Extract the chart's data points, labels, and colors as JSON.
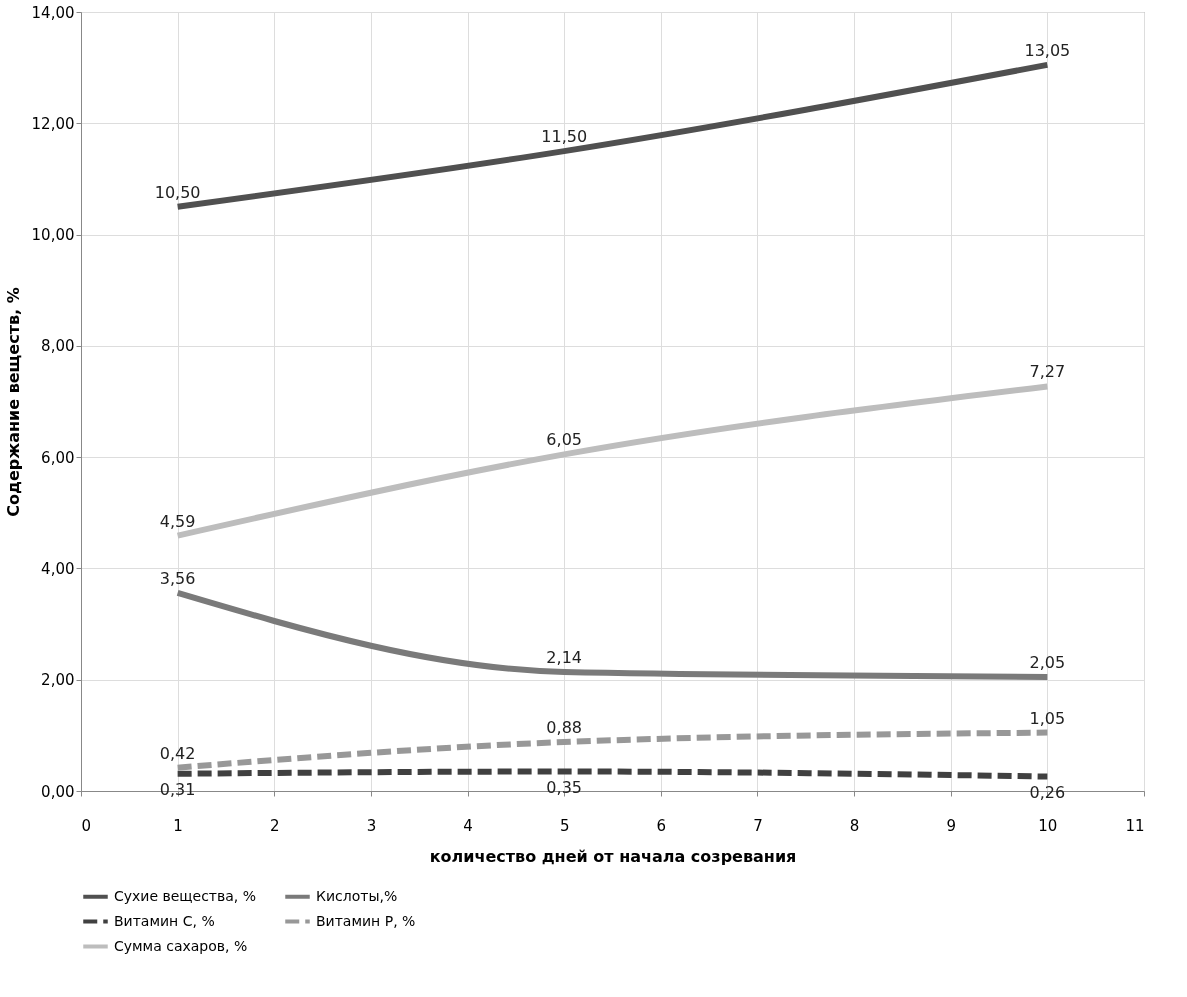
{
  "chart_data": {
    "type": "line",
    "xlabel": "количество дней от начала созревания",
    "ylabel": "Содержание веществ, %",
    "x": [
      1,
      5,
      10
    ],
    "series": [
      {
        "name": "Сухие вещества, %",
        "color": "#505050",
        "line_style": "solid",
        "values": [
          10.5,
          11.5,
          13.05
        ],
        "value_labels": [
          "10,50",
          "11,50",
          "13,05"
        ]
      },
      {
        "name": "Кислоты,%",
        "color": "#7a7a7a",
        "line_style": "solid",
        "values": [
          3.56,
          2.14,
          2.05
        ],
        "value_labels": [
          "3,56",
          "2,14",
          "2,05"
        ]
      },
      {
        "name": "Витамин С, %",
        "color": "#404040",
        "line_style": "dashed",
        "values": [
          0.31,
          0.35,
          0.26
        ],
        "value_labels": [
          "0,31",
          "0,35",
          "0,26"
        ]
      },
      {
        "name": "Витамин Р, %",
        "color": "#989898",
        "line_style": "dashed",
        "values": [
          0.42,
          0.88,
          1.05
        ],
        "value_labels": [
          "0,42",
          "0,88",
          "1,05"
        ]
      },
      {
        "name": "Сумма сахаров, %",
        "color": "#bdbdbd",
        "line_style": "solid",
        "values": [
          4.59,
          6.05,
          7.27
        ],
        "value_labels": [
          "4,59",
          "6,05",
          "7,27"
        ]
      }
    ],
    "xlim": [
      0,
      11
    ],
    "xticks": [
      0,
      1,
      2,
      3,
      4,
      5,
      6,
      7,
      8,
      9,
      10,
      11
    ],
    "ylim": [
      0,
      14
    ],
    "yticks": [
      {
        "value": 0,
        "label": "0,00"
      },
      {
        "value": 2,
        "label": "2,00"
      },
      {
        "value": 4,
        "label": "4,00"
      },
      {
        "value": 6,
        "label": "6,00"
      },
      {
        "value": 8,
        "label": "8,00"
      },
      {
        "value": 10,
        "label": "10,00"
      },
      {
        "value": 12,
        "label": "12,00"
      },
      {
        "value": 14,
        "label": "14,00"
      }
    ],
    "grid": true,
    "legend": "bottom",
    "marker": "none"
  }
}
